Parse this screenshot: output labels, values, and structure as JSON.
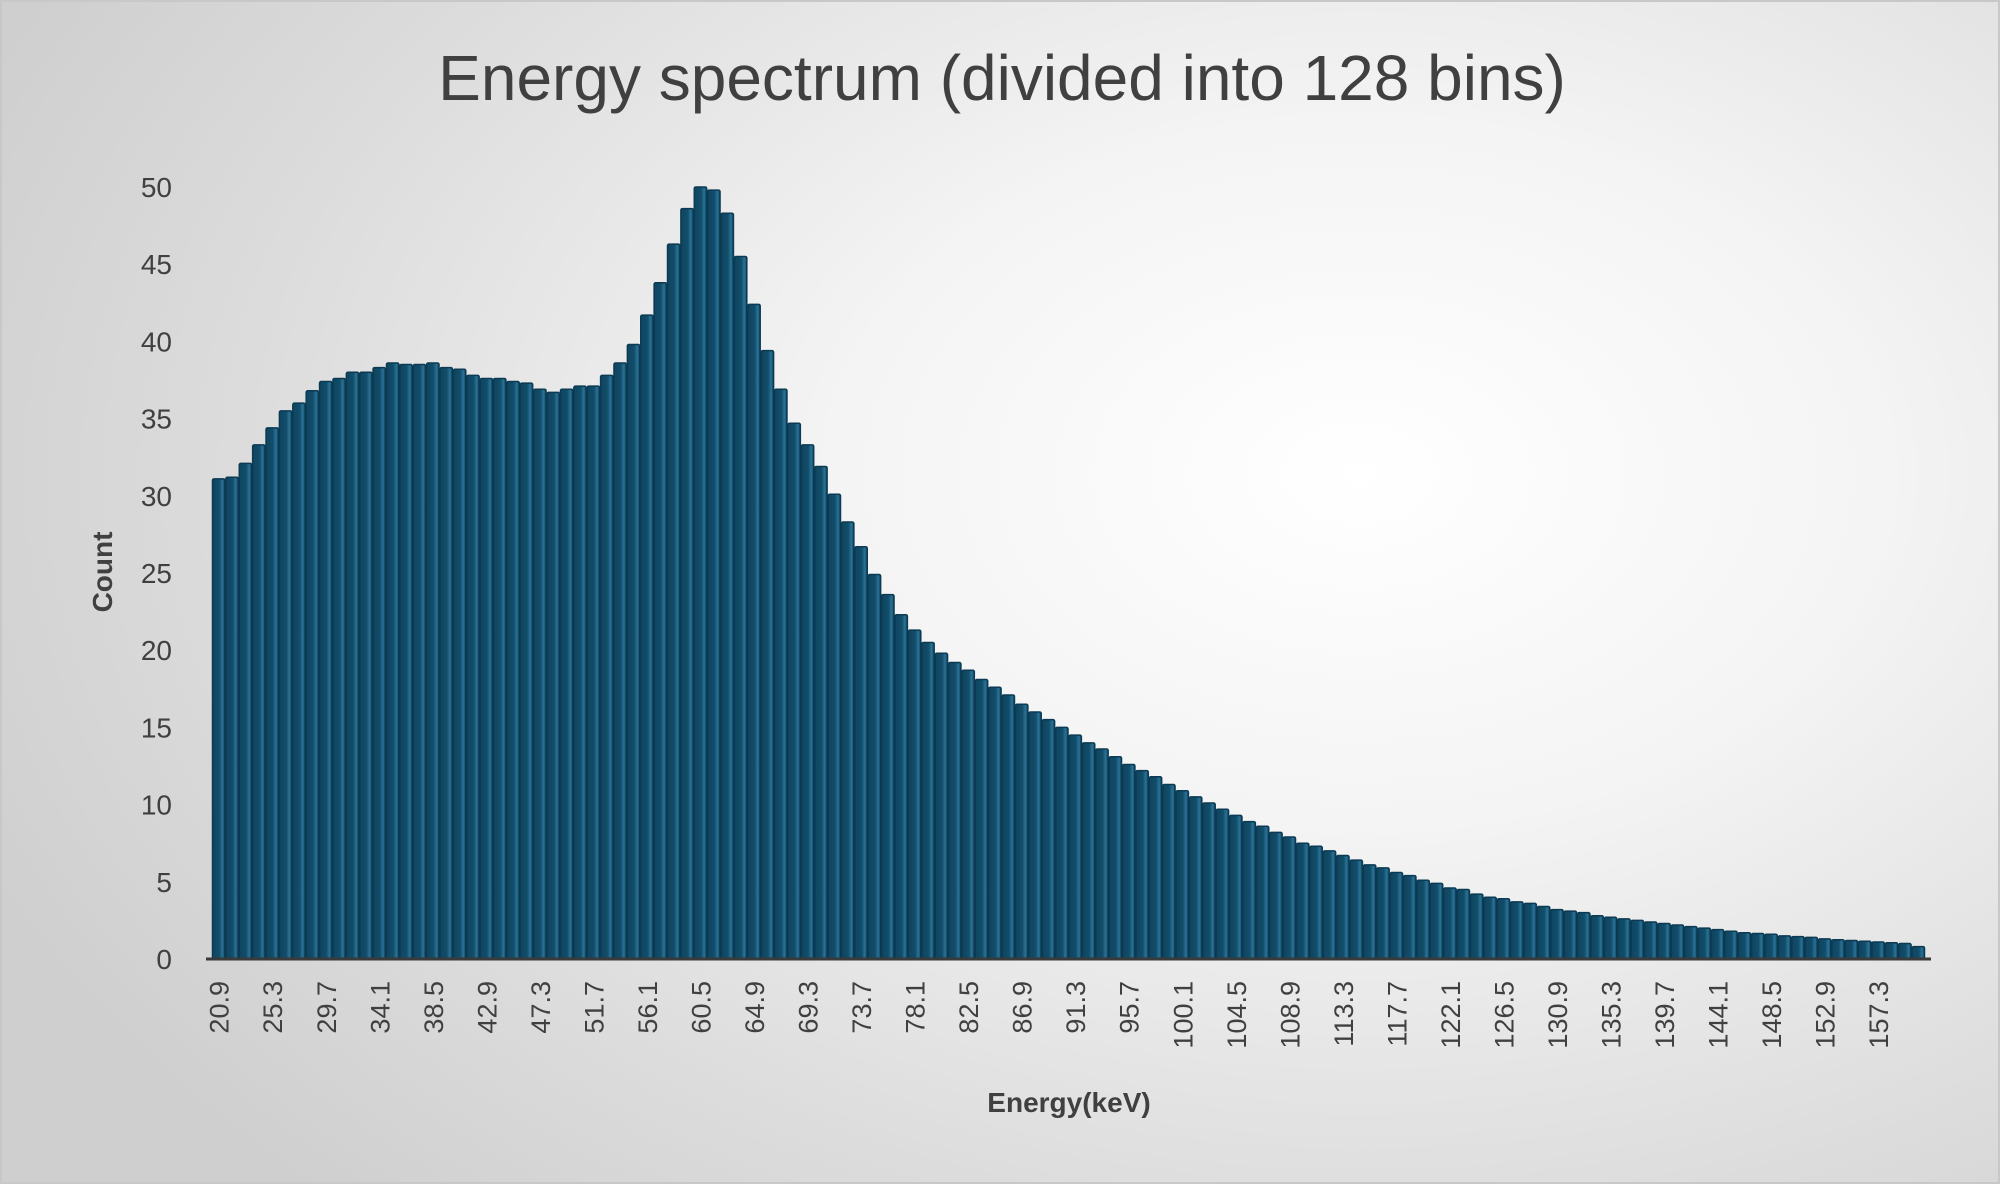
{
  "chart_data": {
    "type": "bar",
    "title": "Energy spectrum (divided into 128  bins)",
    "xlabel": "Energy(keV)",
    "ylabel": "Count",
    "ylim": [
      0,
      50
    ],
    "yticks": [
      "0",
      "5",
      "10",
      "15",
      "20",
      "25",
      "30",
      "35",
      "40",
      "45",
      "50"
    ],
    "bin_start": 20.9,
    "bin_width": 1.1,
    "xtick_labels": [
      "20.9",
      "25.3",
      "29.7",
      "34.1",
      "38.5",
      "42.9",
      "47.3",
      "51.7",
      "56.1",
      "60.5",
      "64.9",
      "69.3",
      "73.7",
      "78.1",
      "82.5",
      "86.9",
      "91.3",
      "95.7",
      "100.1",
      "104.5",
      "108.9",
      "113.3",
      "117.7",
      "122.1",
      "126.5",
      "130.9",
      "135.3",
      "139.7",
      "144.1",
      "148.5",
      "152.9",
      "157.3"
    ],
    "xtick_every": 4,
    "grid": false,
    "legend": "none",
    "bar_color": "#124d6a",
    "values": [
      31.1,
      31.2,
      32.1,
      33.3,
      34.4,
      35.5,
      36.0,
      36.8,
      37.4,
      37.6,
      38.0,
      38.0,
      38.3,
      38.6,
      38.5,
      38.5,
      38.6,
      38.3,
      38.2,
      37.8,
      37.6,
      37.6,
      37.4,
      37.3,
      36.9,
      36.7,
      36.9,
      37.1,
      37.1,
      37.8,
      38.6,
      39.8,
      41.7,
      43.8,
      46.3,
      48.6,
      50.0,
      49.8,
      48.3,
      45.5,
      42.4,
      39.4,
      36.9,
      34.7,
      33.3,
      31.9,
      30.1,
      28.3,
      26.7,
      24.9,
      23.6,
      22.3,
      21.3,
      20.5,
      19.8,
      19.2,
      18.7,
      18.1,
      17.6,
      17.1,
      16.5,
      16.0,
      15.5,
      15.0,
      14.5,
      14.0,
      13.6,
      13.1,
      12.6,
      12.2,
      11.8,
      11.3,
      10.9,
      10.5,
      10.1,
      9.7,
      9.3,
      8.9,
      8.6,
      8.2,
      7.9,
      7.5,
      7.3,
      7.0,
      6.7,
      6.4,
      6.1,
      5.9,
      5.6,
      5.4,
      5.1,
      4.9,
      4.6,
      4.5,
      4.2,
      4.0,
      3.9,
      3.7,
      3.6,
      3.4,
      3.2,
      3.1,
      3.0,
      2.8,
      2.7,
      2.6,
      2.5,
      2.4,
      2.3,
      2.2,
      2.1,
      2.0,
      1.9,
      1.8,
      1.7,
      1.65,
      1.6,
      1.5,
      1.45,
      1.4,
      1.3,
      1.25,
      1.2,
      1.15,
      1.1,
      1.05,
      1.0,
      0.8
    ]
  }
}
